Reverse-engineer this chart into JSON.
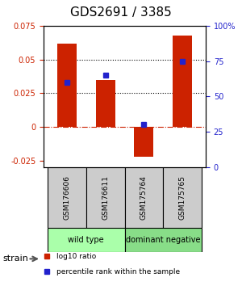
{
  "title": "GDS2691 / 3385",
  "samples": [
    "GSM176606",
    "GSM176611",
    "GSM175764",
    "GSM175765"
  ],
  "log10_ratio": [
    0.062,
    0.035,
    -0.022,
    0.068
  ],
  "percentile_rank": [
    0.6,
    0.65,
    0.3,
    0.75
  ],
  "groups": [
    {
      "label": "wild type",
      "samples": [
        0,
        1
      ],
      "color": "#aaffaa"
    },
    {
      "label": "dominant negative",
      "samples": [
        2,
        3
      ],
      "color": "#88dd88"
    }
  ],
  "bar_color": "#cc2200",
  "dot_color": "#2222cc",
  "ylim_left": [
    -0.03,
    0.075
  ],
  "ylim_right": [
    0,
    1.0
  ],
  "yticks_left": [
    -0.025,
    0,
    0.025,
    0.05,
    0.075
  ],
  "yticks_right": [
    0,
    0.25,
    0.5,
    0.75,
    1.0
  ],
  "ytick_labels_left": [
    "-0.025",
    "0",
    "0.025",
    "0.05",
    "0.075"
  ],
  "ytick_labels_right": [
    "0",
    "25",
    "50",
    "75",
    "100%"
  ],
  "hlines": [
    0.025,
    0.05
  ],
  "zero_line": 0.0,
  "xlabel_color_left": "#cc2200",
  "xlabel_color_right": "#2222cc",
  "strain_label": "strain",
  "legend_items": [
    {
      "label": "log10 ratio",
      "color": "#cc2200",
      "marker": "s"
    },
    {
      "label": "percentile rank within the sample",
      "color": "#2222cc",
      "marker": "s"
    }
  ]
}
